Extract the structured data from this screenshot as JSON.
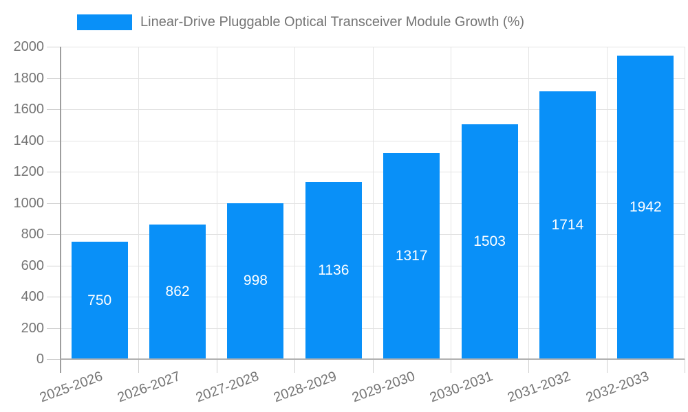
{
  "colors": {
    "background": "#ffffff",
    "bar": "#0990f8",
    "gridline": "#e3e3e3",
    "tick": "#cfcfcf",
    "y_axis_line": "#9e9e9e",
    "x_axis_line": "#b0b0b0",
    "axis_text": "#757575",
    "value_label": "#ffffff"
  },
  "chart_data": {
    "type": "bar",
    "title": "Linear-Drive Pluggable Optical Transceiver Module Growth (%)",
    "categories": [
      "2025-2026",
      "2026-2027",
      "2027-2028",
      "2028-2029",
      "2029-2030",
      "2030-2031",
      "2031-2032",
      "2032-2033"
    ],
    "values": [
      750,
      862,
      998,
      1136,
      1317,
      1503,
      1714,
      1942
    ],
    "series": [
      {
        "name": "Linear-Drive Pluggable Optical Transceiver Module Growth (%)",
        "values": [
          750,
          862,
          998,
          1136,
          1317,
          1503,
          1714,
          1942
        ]
      }
    ],
    "xlabel": "",
    "ylabel": "",
    "ylim": [
      0,
      2000
    ],
    "ytick_step": 200,
    "yticks": [
      0,
      200,
      400,
      600,
      800,
      1000,
      1200,
      1400,
      1600,
      1800,
      2000
    ],
    "grid": true,
    "legend_position": "top",
    "bar_value_labels": true,
    "x_label_rotation_deg": -20
  }
}
